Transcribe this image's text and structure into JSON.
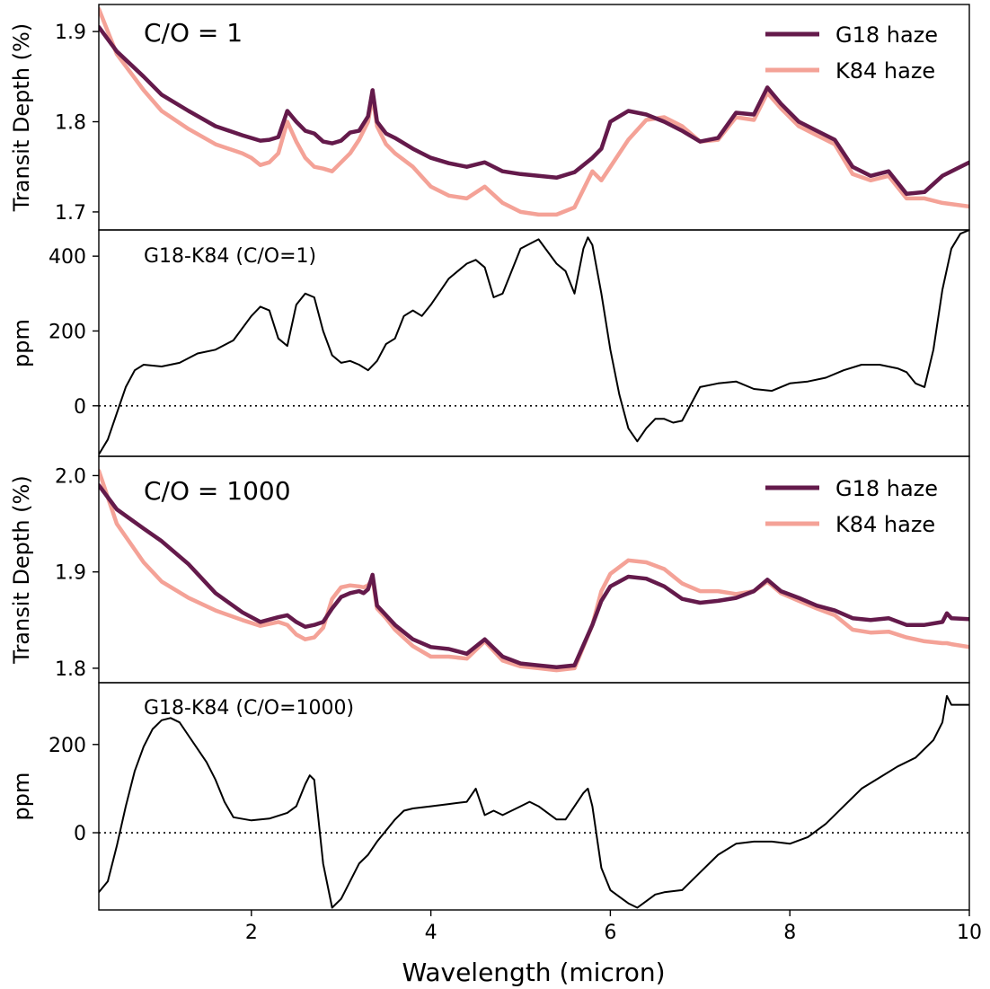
{
  "figure": {
    "xlabel": "Wavelength (micron)",
    "xticks": [
      "2",
      "4",
      "6",
      "8",
      "10"
    ]
  },
  "colors": {
    "g18": "#641a4b",
    "k84": "#f4a297",
    "diff": "#000000"
  },
  "chart_data": [
    {
      "type": "line",
      "panel": "co1-spectrum",
      "annotation": "C/O = 1",
      "ylabel": "Transit Depth (%)",
      "xlim": [
        0.3,
        10.0
      ],
      "ylim": [
        1.68,
        1.93
      ],
      "yticks": [
        "1.7",
        "1.8",
        "1.9"
      ],
      "legend": "top-right",
      "series": [
        {
          "name": "G18 haze",
          "color": "#641a4b",
          "x": [
            0.3,
            0.5,
            0.8,
            1.0,
            1.3,
            1.6,
            1.9,
            2.0,
            2.1,
            2.2,
            2.3,
            2.4,
            2.5,
            2.6,
            2.7,
            2.8,
            2.9,
            3.0,
            3.1,
            3.2,
            3.3,
            3.35,
            3.4,
            3.5,
            3.6,
            3.8,
            4.0,
            4.2,
            4.4,
            4.6,
            4.8,
            5.0,
            5.2,
            5.4,
            5.6,
            5.8,
            5.9,
            6.0,
            6.2,
            6.4,
            6.6,
            6.8,
            7.0,
            7.2,
            7.4,
            7.6,
            7.75,
            7.9,
            8.1,
            8.3,
            8.5,
            8.7,
            8.9,
            9.1,
            9.3,
            9.5,
            9.7,
            10.0
          ],
          "y": [
            1.905,
            1.878,
            1.85,
            1.83,
            1.812,
            1.795,
            1.785,
            1.782,
            1.779,
            1.78,
            1.783,
            1.812,
            1.8,
            1.79,
            1.787,
            1.778,
            1.776,
            1.779,
            1.788,
            1.79,
            1.806,
            1.835,
            1.8,
            1.787,
            1.782,
            1.77,
            1.76,
            1.754,
            1.75,
            1.755,
            1.745,
            1.742,
            1.74,
            1.738,
            1.744,
            1.76,
            1.77,
            1.8,
            1.812,
            1.808,
            1.8,
            1.79,
            1.778,
            1.782,
            1.81,
            1.808,
            1.838,
            1.82,
            1.8,
            1.79,
            1.78,
            1.75,
            1.74,
            1.745,
            1.72,
            1.722,
            1.74,
            1.755
          ]
        },
        {
          "name": "K84 haze",
          "color": "#f4a297",
          "x": [
            0.3,
            0.5,
            0.8,
            1.0,
            1.3,
            1.6,
            1.9,
            2.0,
            2.1,
            2.2,
            2.3,
            2.4,
            2.5,
            2.6,
            2.7,
            2.8,
            2.9,
            3.0,
            3.1,
            3.2,
            3.3,
            3.35,
            3.4,
            3.5,
            3.6,
            3.8,
            4.0,
            4.2,
            4.4,
            4.6,
            4.8,
            5.0,
            5.2,
            5.4,
            5.6,
            5.8,
            5.9,
            6.0,
            6.2,
            6.4,
            6.6,
            6.8,
            7.0,
            7.2,
            7.4,
            7.6,
            7.75,
            7.9,
            8.1,
            8.3,
            8.5,
            8.7,
            8.9,
            9.1,
            9.3,
            9.5,
            9.7,
            10.0
          ],
          "y": [
            1.925,
            1.875,
            1.835,
            1.812,
            1.792,
            1.775,
            1.765,
            1.76,
            1.752,
            1.755,
            1.765,
            1.8,
            1.778,
            1.76,
            1.75,
            1.748,
            1.745,
            1.755,
            1.765,
            1.78,
            1.8,
            1.828,
            1.795,
            1.775,
            1.765,
            1.75,
            1.728,
            1.718,
            1.715,
            1.728,
            1.71,
            1.7,
            1.697,
            1.697,
            1.705,
            1.745,
            1.735,
            1.75,
            1.78,
            1.802,
            1.805,
            1.795,
            1.778,
            1.78,
            1.805,
            1.802,
            1.832,
            1.815,
            1.795,
            1.785,
            1.775,
            1.742,
            1.735,
            1.74,
            1.715,
            1.715,
            1.71,
            1.706
          ]
        }
      ]
    },
    {
      "type": "line",
      "panel": "co1-difference",
      "annotation": "G18-K84 (C/O=1)",
      "ylabel": "ppm",
      "xlim": [
        0.3,
        10.0
      ],
      "ylim": [
        -135,
        470
      ],
      "yticks": [
        "0",
        "200",
        "400"
      ],
      "zero_line": true,
      "series": [
        {
          "color": "#000000",
          "x": [
            0.3,
            0.4,
            0.5,
            0.6,
            0.7,
            0.8,
            1.0,
            1.2,
            1.4,
            1.6,
            1.8,
            2.0,
            2.1,
            2.2,
            2.3,
            2.4,
            2.5,
            2.6,
            2.7,
            2.8,
            2.9,
            3.0,
            3.1,
            3.2,
            3.3,
            3.4,
            3.5,
            3.6,
            3.7,
            3.8,
            3.9,
            4.0,
            4.2,
            4.3,
            4.4,
            4.5,
            4.6,
            4.7,
            4.8,
            5.0,
            5.2,
            5.4,
            5.5,
            5.6,
            5.7,
            5.75,
            5.8,
            5.9,
            6.0,
            6.1,
            6.2,
            6.3,
            6.4,
            6.5,
            6.6,
            6.7,
            6.8,
            7.0,
            7.2,
            7.4,
            7.6,
            7.8,
            8.0,
            8.2,
            8.4,
            8.6,
            8.8,
            9.0,
            9.2,
            9.3,
            9.4,
            9.5,
            9.6,
            9.7,
            9.8,
            9.9,
            10.0
          ],
          "y": [
            -130,
            -90,
            -20,
            50,
            95,
            110,
            105,
            115,
            140,
            150,
            175,
            240,
            265,
            255,
            180,
            160,
            270,
            300,
            290,
            200,
            135,
            115,
            120,
            110,
            95,
            120,
            165,
            180,
            240,
            255,
            240,
            270,
            340,
            360,
            380,
            390,
            370,
            290,
            300,
            420,
            445,
            380,
            360,
            300,
            420,
            450,
            430,
            300,
            150,
            30,
            -60,
            -95,
            -60,
            -35,
            -35,
            -45,
            -40,
            50,
            60,
            65,
            45,
            40,
            60,
            65,
            75,
            95,
            110,
            110,
            100,
            90,
            60,
            50,
            150,
            310,
            420,
            460,
            470
          ]
        }
      ]
    },
    {
      "type": "line",
      "panel": "co1000-spectrum",
      "annotation": "C/O = 1000",
      "ylabel": "Transit Depth (%)",
      "xlim": [
        0.3,
        10.0
      ],
      "ylim": [
        1.785,
        2.02
      ],
      "yticks": [
        "1.8",
        "1.9",
        "2.0"
      ],
      "legend": "top-right",
      "series": [
        {
          "name": "G18 haze",
          "color": "#641a4b",
          "x": [
            0.3,
            0.5,
            0.8,
            1.0,
            1.3,
            1.6,
            1.9,
            2.1,
            2.3,
            2.4,
            2.5,
            2.6,
            2.7,
            2.8,
            2.9,
            3.0,
            3.1,
            3.2,
            3.25,
            3.3,
            3.35,
            3.4,
            3.5,
            3.6,
            3.8,
            4.0,
            4.2,
            4.4,
            4.6,
            4.8,
            5.0,
            5.2,
            5.4,
            5.6,
            5.8,
            5.9,
            6.0,
            6.2,
            6.4,
            6.6,
            6.8,
            7.0,
            7.2,
            7.4,
            7.6,
            7.75,
            7.9,
            8.1,
            8.3,
            8.5,
            8.7,
            8.9,
            9.1,
            9.3,
            9.5,
            9.7,
            9.75,
            9.8,
            10.0
          ],
          "y": [
            1.99,
            1.965,
            1.945,
            1.932,
            1.908,
            1.878,
            1.858,
            1.848,
            1.853,
            1.855,
            1.848,
            1.843,
            1.845,
            1.848,
            1.862,
            1.874,
            1.878,
            1.88,
            1.878,
            1.882,
            1.897,
            1.865,
            1.855,
            1.845,
            1.83,
            1.822,
            1.82,
            1.815,
            1.83,
            1.812,
            1.805,
            1.803,
            1.801,
            1.803,
            1.845,
            1.87,
            1.885,
            1.895,
            1.893,
            1.885,
            1.872,
            1.868,
            1.87,
            1.873,
            1.88,
            1.892,
            1.88,
            1.873,
            1.865,
            1.86,
            1.852,
            1.85,
            1.852,
            1.845,
            1.845,
            1.848,
            1.857,
            1.852,
            1.851
          ]
        },
        {
          "name": "K84 haze",
          "color": "#f4a297",
          "x": [
            0.3,
            0.5,
            0.8,
            1.0,
            1.3,
            1.6,
            1.9,
            2.1,
            2.3,
            2.4,
            2.5,
            2.6,
            2.7,
            2.8,
            2.9,
            3.0,
            3.1,
            3.2,
            3.25,
            3.3,
            3.35,
            3.4,
            3.5,
            3.6,
            3.8,
            4.0,
            4.2,
            4.4,
            4.6,
            4.8,
            5.0,
            5.2,
            5.4,
            5.6,
            5.8,
            5.9,
            6.0,
            6.2,
            6.4,
            6.6,
            6.8,
            7.0,
            7.2,
            7.4,
            7.6,
            7.75,
            7.9,
            8.1,
            8.3,
            8.5,
            8.7,
            8.9,
            9.1,
            9.3,
            9.5,
            9.7,
            9.75,
            9.8,
            10.0
          ],
          "y": [
            2.005,
            1.95,
            1.91,
            1.89,
            1.873,
            1.86,
            1.85,
            1.844,
            1.848,
            1.845,
            1.835,
            1.83,
            1.832,
            1.842,
            1.872,
            1.884,
            1.886,
            1.885,
            1.884,
            1.886,
            1.893,
            1.862,
            1.852,
            1.84,
            1.823,
            1.812,
            1.812,
            1.81,
            1.828,
            1.808,
            1.802,
            1.8,
            1.798,
            1.8,
            1.845,
            1.88,
            1.898,
            1.912,
            1.91,
            1.903,
            1.888,
            1.88,
            1.88,
            1.877,
            1.88,
            1.89,
            1.878,
            1.87,
            1.862,
            1.855,
            1.84,
            1.837,
            1.838,
            1.832,
            1.828,
            1.826,
            1.826,
            1.825,
            1.822
          ]
        }
      ]
    },
    {
      "type": "line",
      "panel": "co1000-difference",
      "annotation": "G18-K84 (C/O=1000)",
      "ylabel": "ppm",
      "xlim": [
        0.3,
        10.0
      ],
      "ylim": [
        -175,
        340
      ],
      "yticks": [
        "0",
        "200"
      ],
      "zero_line": true,
      "series": [
        {
          "color": "#000000",
          "x": [
            0.3,
            0.4,
            0.5,
            0.6,
            0.7,
            0.8,
            0.9,
            1.0,
            1.1,
            1.2,
            1.3,
            1.4,
            1.5,
            1.6,
            1.7,
            1.8,
            2.0,
            2.2,
            2.4,
            2.5,
            2.6,
            2.65,
            2.7,
            2.8,
            2.9,
            3.0,
            3.1,
            3.2,
            3.3,
            3.4,
            3.5,
            3.6,
            3.7,
            3.8,
            4.0,
            4.2,
            4.4,
            4.5,
            4.6,
            4.7,
            4.8,
            5.0,
            5.1,
            5.2,
            5.4,
            5.5,
            5.6,
            5.7,
            5.75,
            5.8,
            5.9,
            6.0,
            6.1,
            6.2,
            6.3,
            6.4,
            6.5,
            6.6,
            6.8,
            7.0,
            7.2,
            7.4,
            7.6,
            7.8,
            8.0,
            8.2,
            8.4,
            8.6,
            8.8,
            9.0,
            9.2,
            9.4,
            9.6,
            9.7,
            9.75,
            9.8,
            9.9,
            10.0
          ],
          "y": [
            -135,
            -110,
            -30,
            60,
            140,
            195,
            235,
            255,
            260,
            250,
            220,
            190,
            160,
            120,
            70,
            35,
            28,
            32,
            45,
            60,
            110,
            130,
            120,
            -70,
            -170,
            -150,
            -110,
            -70,
            -50,
            -20,
            5,
            30,
            50,
            55,
            60,
            65,
            70,
            100,
            40,
            50,
            40,
            60,
            70,
            60,
            30,
            30,
            60,
            90,
            100,
            60,
            -80,
            -130,
            -145,
            -160,
            -170,
            -155,
            -140,
            -135,
            -130,
            -90,
            -50,
            -25,
            -20,
            -20,
            -25,
            -10,
            20,
            60,
            100,
            125,
            150,
            170,
            210,
            250,
            310,
            290,
            290,
            290
          ]
        }
      ]
    }
  ]
}
